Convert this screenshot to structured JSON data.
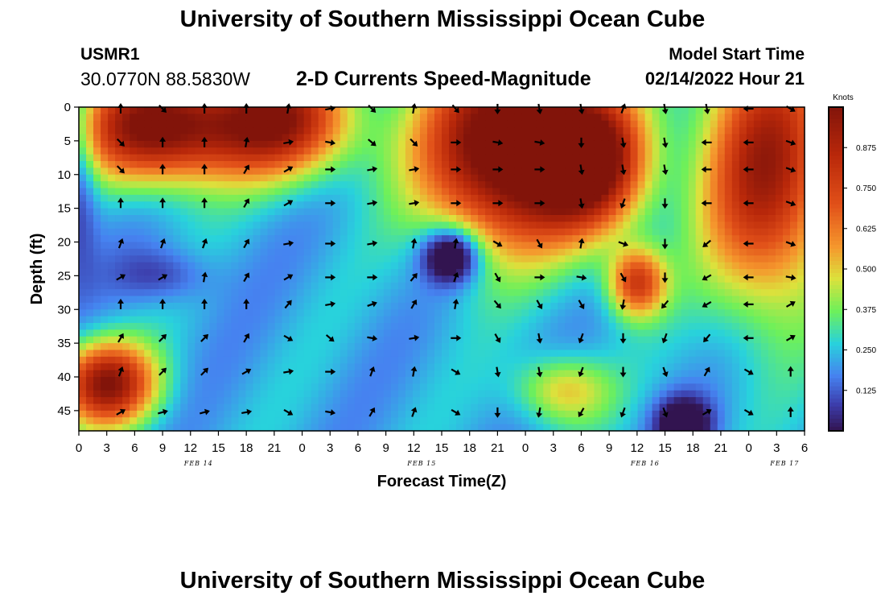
{
  "header": {
    "title": "University of Southern Mississippi Ocean Cube",
    "station_id": "USMR1",
    "coordinates": "30.0770N  88.5830W",
    "chart_title": "2-D Currents Speed-Magnitude",
    "model_label": "Model Start Time",
    "model_time": "02/14/2022 Hour 21"
  },
  "footer": {
    "title": "University of Southern Mississippi Ocean Cube"
  },
  "colors": {
    "low": "#3b2f8f",
    "mid_blue": "#4a8cf0",
    "cyan": "#22d8d0",
    "green": "#7fe85a",
    "yellow": "#f0d83a",
    "orange": "#f08030",
    "red": "#c02810",
    "dark_red": "#8a1a10",
    "arrow": "#000000"
  },
  "chart_data": {
    "type": "heatmap",
    "title": "2-D Currents Speed-Magnitude",
    "xlabel": "Forecast Time(Z)",
    "ylabel": "Depth (ft)",
    "x_tick_labels": [
      "0",
      "3",
      "6",
      "9",
      "12",
      "15",
      "18",
      "21",
      "0",
      "3",
      "6",
      "9",
      "12",
      "15",
      "18",
      "21",
      "0",
      "3",
      "6",
      "9",
      "12",
      "15",
      "18",
      "21",
      "0",
      "3",
      "6"
    ],
    "x_range_hours": [
      0,
      78
    ],
    "date_labels": [
      {
        "text": "FEB 14",
        "hour": 12
      },
      {
        "text": "FEB 15",
        "hour": 36
      },
      {
        "text": "FEB 16",
        "hour": 60
      },
      {
        "text": "FEB 17",
        "hour": 75
      }
    ],
    "y_tick_labels": [
      "0",
      "5",
      "10",
      "15",
      "20",
      "25",
      "30",
      "35",
      "40",
      "45"
    ],
    "y_range_ft": [
      0,
      48
    ],
    "colorbar": {
      "label": "Knots",
      "range": [
        0.0,
        1.0
      ],
      "ticks": [
        "0.875",
        "0.750",
        "0.625",
        "0.500",
        "0.375",
        "0.250",
        "0.125"
      ],
      "tick_values": [
        0.875,
        0.75,
        0.625,
        0.5,
        0.375,
        0.25,
        0.125
      ]
    },
    "speed_features": [
      {
        "hour": 8,
        "depth": 3,
        "hw": 8,
        "hd": 8,
        "value": 0.8
      },
      {
        "hour": 21,
        "depth": 2,
        "hw": 8,
        "hd": 8,
        "value": 0.75
      },
      {
        "hour": 46,
        "depth": 6,
        "hw": 9,
        "hd": 14,
        "value": 0.95
      },
      {
        "hour": 55,
        "depth": 8,
        "hw": 6,
        "hd": 10,
        "value": 0.75
      },
      {
        "hour": 74,
        "depth": 9,
        "hw": 7,
        "hd": 20,
        "value": 0.7
      },
      {
        "hour": 3,
        "depth": 41,
        "hw": 5,
        "hd": 6,
        "value": 0.75
      },
      {
        "hour": 60,
        "depth": 26,
        "hw": 3,
        "hd": 5,
        "value": 0.55
      },
      {
        "hour": 52,
        "depth": 42,
        "hw": 5,
        "hd": 5,
        "value": 0.3
      },
      {
        "hour": 40,
        "depth": 22,
        "hw": 3,
        "hd": 4,
        "value": -0.45
      },
      {
        "hour": 9,
        "depth": 25,
        "hw": 5,
        "hd": 4,
        "value": -0.15
      },
      {
        "hour": 65,
        "depth": 47,
        "hw": 3,
        "hd": 4,
        "value": -0.35
      },
      {
        "hour": 0,
        "depth": 10,
        "hw": 2,
        "hd": 14,
        "value": -0.2
      }
    ],
    "background_speed": 0.22,
    "vector_rows_depth_ft": [
      0,
      5,
      9,
      14,
      20,
      25,
      29,
      34,
      39,
      45
    ],
    "vector_columns_hours": [
      4.5,
      9,
      13.5,
      18,
      22.5,
      27,
      31.5,
      36,
      40.5,
      45,
      49.5,
      54,
      58.5,
      63,
      67.5,
      72,
      76.5
    ],
    "vector_directions_deg": [
      [
        0,
        135,
        0,
        0,
        10,
        80,
        135,
        10,
        140,
        180,
        170,
        170,
        20,
        170,
        170,
        270,
        120
      ],
      [
        135,
        0,
        0,
        10,
        80,
        100,
        130,
        135,
        90,
        100,
        100,
        180,
        170,
        170,
        270,
        270,
        110
      ],
      [
        135,
        0,
        0,
        30,
        60,
        90,
        80,
        80,
        90,
        90,
        90,
        170,
        170,
        170,
        270,
        270,
        110
      ],
      [
        0,
        0,
        0,
        30,
        60,
        90,
        80,
        80,
        90,
        90,
        90,
        170,
        200,
        180,
        270,
        270,
        110
      ],
      [
        20,
        20,
        20,
        30,
        80,
        90,
        80,
        10,
        10,
        120,
        150,
        10,
        110,
        180,
        230,
        270,
        110
      ],
      [
        60,
        60,
        10,
        30,
        60,
        90,
        90,
        40,
        20,
        150,
        90,
        100,
        150,
        180,
        240,
        270,
        100
      ],
      [
        0,
        0,
        0,
        0,
        40,
        80,
        70,
        30,
        10,
        140,
        150,
        150,
        190,
        220,
        240,
        270,
        60
      ],
      [
        30,
        45,
        45,
        30,
        120,
        130,
        100,
        80,
        90,
        150,
        170,
        200,
        180,
        200,
        220,
        270,
        60
      ],
      [
        20,
        45,
        45,
        60,
        80,
        90,
        20,
        10,
        120,
        170,
        170,
        200,
        180,
        160,
        30,
        120,
        0
      ],
      [
        60,
        75,
        75,
        80,
        120,
        100,
        30,
        20,
        120,
        180,
        190,
        210,
        200,
        160,
        60,
        120,
        0
      ]
    ]
  }
}
